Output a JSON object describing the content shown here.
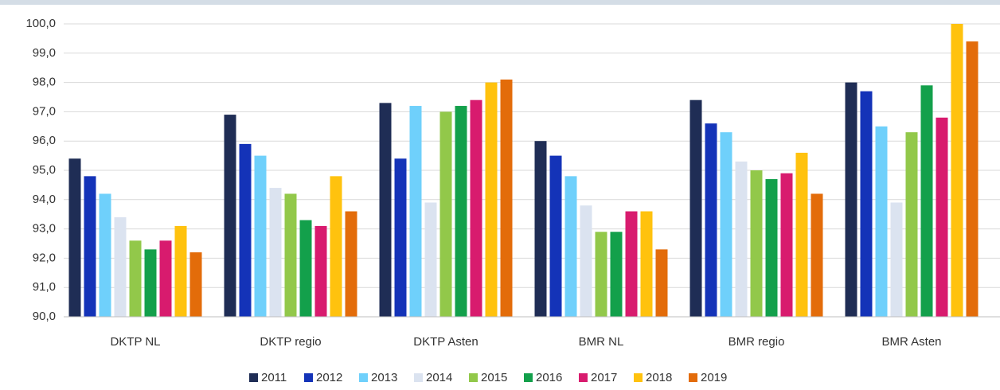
{
  "chart_data": {
    "type": "bar",
    "categories": [
      "DKTP NL",
      "DKTP regio",
      "DKTP Asten",
      "BMR NL",
      "BMR regio",
      "BMR Asten"
    ],
    "series": [
      {
        "name": "2011",
        "color": "#1f2d55",
        "values": [
          95.4,
          96.9,
          97.3,
          96.0,
          97.4,
          98.0
        ]
      },
      {
        "name": "2012",
        "color": "#1433b8",
        "values": [
          94.8,
          95.9,
          95.4,
          95.5,
          96.6,
          97.7
        ]
      },
      {
        "name": "2013",
        "color": "#6fd0fb",
        "values": [
          94.2,
          95.5,
          97.2,
          94.8,
          96.3,
          96.5
        ]
      },
      {
        "name": "2014",
        "color": "#dbe3f0",
        "values": [
          93.4,
          94.4,
          93.9,
          93.8,
          95.3,
          93.9
        ]
      },
      {
        "name": "2015",
        "color": "#92c84a",
        "values": [
          92.6,
          94.2,
          97.0,
          92.9,
          95.0,
          96.3
        ]
      },
      {
        "name": "2016",
        "color": "#13a04b",
        "values": [
          92.3,
          93.3,
          97.2,
          92.9,
          94.7,
          97.9
        ]
      },
      {
        "name": "2017",
        "color": "#d81b6e",
        "values": [
          92.6,
          93.1,
          97.4,
          93.6,
          94.9,
          96.8
        ]
      },
      {
        "name": "2018",
        "color": "#ffc20e",
        "values": [
          93.1,
          94.8,
          98.0,
          93.6,
          95.6,
          100.0
        ]
      },
      {
        "name": "2019",
        "color": "#e36c0a",
        "values": [
          92.2,
          93.6,
          98.1,
          92.3,
          94.2,
          99.4
        ]
      }
    ],
    "ylim": [
      90,
      100
    ],
    "yticks": [
      {
        "value": 90,
        "label": "90,0"
      },
      {
        "value": 91,
        "label": "91,0"
      },
      {
        "value": 92,
        "label": "92,0"
      },
      {
        "value": 93,
        "label": "93,0"
      },
      {
        "value": 94,
        "label": "94,0"
      },
      {
        "value": 95,
        "label": "95,0"
      },
      {
        "value": 96,
        "label": "96,0"
      },
      {
        "value": 97,
        "label": "97,0"
      },
      {
        "value": 98,
        "label": "98,0"
      },
      {
        "value": 99,
        "label": "99,0"
      },
      {
        "value": 100,
        "label": "100,0"
      }
    ],
    "grid": true
  }
}
